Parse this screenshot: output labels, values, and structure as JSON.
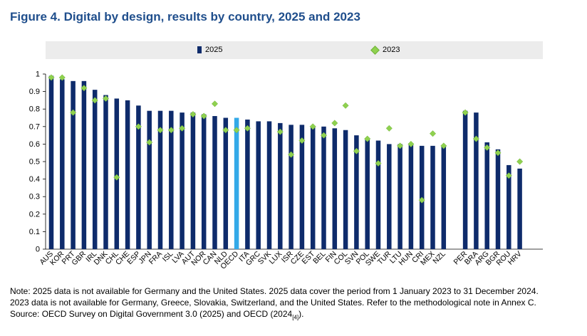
{
  "title": "Figure 4. Digital by design, results by country, 2025 and 2023",
  "legend": {
    "series_2025": "2025",
    "series_2023": "2023"
  },
  "colors": {
    "bar": "#0e2b6b",
    "bar_highlight": "#33a9e8",
    "marker": "#8fd14f",
    "title": "#1f4e8c"
  },
  "notes": {
    "line1": "Note: 2025 data is not available for Germany and the United States. 2025 data cover the period from 1 January 2023 to 31 December 2024.",
    "line2": "2023 data is not available for Germany, Greece, Slovakia, Switzerland, and the United States. Refer to the methodological note in Annex C.",
    "line3_prefix": "Source: OECD Survey on Digital Government 3.0 (2025) and OECD (2024",
    "line3_sub": "[4]",
    "line3_suffix": ")."
  },
  "chart_data": {
    "type": "bar",
    "ylim": [
      0,
      1
    ],
    "yticks": [
      "0",
      "0.1",
      "0.2",
      "0.3",
      "0.4",
      "0.5",
      "0.6",
      "0.7",
      "0.8",
      "0.9",
      "1"
    ],
    "grid": false,
    "legend_position": "top",
    "highlight_category": "OECD",
    "group_break_before": "PER",
    "categories": [
      "AUS",
      "KOR",
      "PRT",
      "GBR",
      "IRL",
      "DNK",
      "CHL",
      "CHE",
      "ESP",
      "JPN",
      "FRA",
      "ISL",
      "LVA",
      "AUT",
      "NOR",
      "CAN",
      "NLD",
      "OECD",
      "ITA",
      "GRC",
      "SVK",
      "LUX",
      "ISR",
      "CZE",
      "EST",
      "BEL",
      "FIN",
      "COL",
      "SVN",
      "POL",
      "SWE",
      "TUR",
      "LTU",
      "HUN",
      "CRI",
      "MEX",
      "NZL",
      "PER",
      "BRA",
      "ARG",
      "BGR",
      "ROU",
      "HRV"
    ],
    "series": [
      {
        "name": "2025",
        "mark": "bar",
        "values": [
          0.99,
          0.97,
          0.96,
          0.96,
          0.91,
          0.88,
          0.86,
          0.85,
          0.82,
          0.79,
          0.79,
          0.79,
          0.78,
          0.78,
          0.77,
          0.76,
          0.75,
          0.75,
          0.74,
          0.73,
          0.73,
          0.72,
          0.71,
          0.71,
          0.7,
          0.7,
          0.69,
          0.68,
          0.65,
          0.63,
          0.62,
          0.6,
          0.6,
          0.6,
          0.59,
          0.59,
          0.59,
          0.79,
          0.78,
          0.61,
          0.57,
          0.48,
          0.46
        ]
      },
      {
        "name": "2023",
        "mark": "diamond",
        "values": [
          0.98,
          0.98,
          0.78,
          0.92,
          0.85,
          0.86,
          0.41,
          null,
          0.7,
          0.61,
          0.68,
          0.68,
          0.69,
          0.77,
          0.76,
          0.83,
          0.68,
          0.68,
          0.69,
          null,
          null,
          0.67,
          0.54,
          0.62,
          0.7,
          0.65,
          0.72,
          0.82,
          0.56,
          0.63,
          0.49,
          0.69,
          0.59,
          0.6,
          0.28,
          0.66,
          0.59,
          0.78,
          0.63,
          0.58,
          0.55,
          0.42,
          0.5
        ]
      }
    ]
  }
}
